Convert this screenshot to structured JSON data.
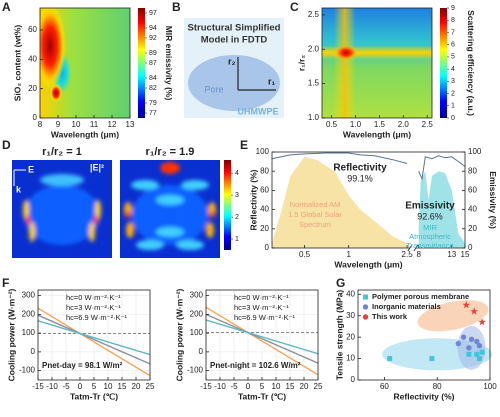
{
  "panel_b": {
    "label": "B",
    "title_1": "Structural Simplified",
    "title_2": "Model in FDTD",
    "pore": "Pore",
    "r2": "r₂",
    "r1": "r₁",
    "matrix": "UHMWPE"
  },
  "chart_data": [
    {
      "type": "heatmap",
      "label": "A",
      "xlabel": "Wavelength (μm)",
      "ylabel": "SiO₂ content (wt%)",
      "xlim": [
        8,
        13
      ],
      "xticks": [
        8,
        9,
        10,
        11,
        12,
        13
      ],
      "ylim": [
        0,
        75
      ],
      "yticks": [
        0,
        20,
        40,
        60
      ],
      "colorbar": {
        "label": "MIR emissivity (%)",
        "lim": [
          76,
          98
        ],
        "ticks": [
          77,
          79,
          82,
          84,
          87,
          89,
          92,
          94,
          97
        ]
      }
    },
    {
      "type": "heatmap",
      "label": "C",
      "xlabel": "Wavelength (μm)",
      "ylabel": "r₁/r₂",
      "xlim": [
        0.3,
        2.6
      ],
      "xticks": [
        0.5,
        {
          "value": 1,
          "label": "1.0"
        },
        1.5,
        {
          "value": 2,
          "label": "2.0"
        },
        2.5
      ],
      "ylim": [
        1,
        2.6
      ],
      "yticks": [
        {
          "value": 1,
          "label": "1.0"
        },
        1.5,
        {
          "value": 2,
          "label": "2.0"
        },
        2.5
      ],
      "colorbar": {
        "label": "Scattering efficiency (a.u.)",
        "lim": [
          0,
          9
        ],
        "ticks": [
          0,
          1,
          2,
          3,
          4,
          5,
          6,
          7,
          8,
          9
        ]
      }
    },
    {
      "type": "field",
      "label": "D",
      "titles": [
        "r₁/r₂ = 1",
        "r₁/r₂ = 1.9"
      ],
      "e_label": "E",
      "k_label": "k",
      "field_label": "|E|²",
      "colorbar": {
        "lim": [
          0.5,
          4.6
        ],
        "ticks": [
          1,
          2,
          3,
          4
        ]
      }
    },
    {
      "type": "spectrum",
      "label": "E",
      "xlabel": "Wavelength (μm)",
      "ylabel": "Reflectivity (%)",
      "y2label": "Emissivity (%)",
      "xlim": [
        0.3,
        15
      ],
      "xbreak": [
        2.5,
        8
      ],
      "xticks": [
        0.5,
        1,
        2.5,
        8,
        13,
        15
      ],
      "ylim": [
        0,
        100
      ],
      "yticks": [
        0,
        20,
        40,
        60,
        80,
        100
      ],
      "y2lim": [
        0,
        100
      ],
      "y2ticks": [
        0,
        20,
        40,
        60,
        80,
        100
      ],
      "series": [
        {
          "color": "#f8e3a6",
          "fill": true,
          "x": [
            0.3,
            0.35,
            0.4,
            0.5,
            0.6,
            0.8,
            1,
            1.2,
            1.5,
            2,
            2.5
          ],
          "values": [
            5,
            40,
            75,
            95,
            92,
            80,
            55,
            40,
            28,
            12,
            5
          ]
        },
        {
          "color": "#9fe3e8",
          "fill": true,
          "axis": "y2",
          "x": [
            8,
            8.3,
            9,
            9.5,
            10,
            11,
            12,
            13,
            14,
            15
          ],
          "values": [
            20,
            70,
            80,
            50,
            75,
            80,
            78,
            60,
            15,
            5
          ]
        },
        {
          "color": "#5d6e9e",
          "x": [
            0.3,
            0.4,
            0.5,
            0.7,
            1,
            1.2,
            1.5,
            2,
            2.5
          ],
          "values": [
            93,
            97,
            98,
            99,
            99,
            97,
            96,
            92,
            88
          ]
        },
        {
          "color": "#5d6e9e",
          "axis": "y2",
          "x": [
            8,
            8.5,
            9,
            10,
            11,
            12,
            13,
            14,
            15
          ],
          "values": [
            80,
            72,
            95,
            93,
            96,
            94,
            95,
            90,
            85
          ]
        }
      ],
      "annotations": [
        "Reflectivity",
        "99.1%",
        "Emissivity",
        "92.6%",
        "Normalized AM",
        "1.5 Global Solar",
        "Spectrum",
        "MIR",
        "Atmospheric",
        "Transmittance"
      ]
    },
    {
      "type": "line",
      "label": "F",
      "xlabel": "Tatm-Tr (℃)",
      "ylabel": "Cooling power (W·m⁻²)",
      "xlim": [
        -15,
        25
      ],
      "xticks": [
        -15,
        -10,
        -5,
        0,
        5,
        10,
        15,
        20,
        25
      ],
      "ylim": [
        -150,
        330
      ],
      "yticks": [
        -100,
        0,
        100,
        200,
        300
      ],
      "reference": 98.1,
      "annotation": "Pnet-day = 98.1 W/m²",
      "series": [
        {
          "name": "hc=0 W·m⁻²·K⁻¹",
          "color": "#f5a55c",
          "x": [
            -15,
            25
          ],
          "values": [
            233.1,
            -126.9
          ]
        },
        {
          "name": "hc=3 W·m⁻²·K⁻¹",
          "color": "#8a8f9a",
          "x": [
            -15,
            25
          ],
          "values": [
            195.6,
            -64.4
          ]
        },
        {
          "name": "hc=6.9 W·m⁻²·K⁻¹",
          "color": "#5bb8c4",
          "x": [
            -15,
            25
          ],
          "values": [
            165.6,
            -14.4
          ]
        }
      ]
    },
    {
      "type": "line",
      "xlabel": "Tatm-Tr (℃)",
      "ylabel": "Cooling power (W·m⁻²)",
      "xlim": [
        -15,
        25
      ],
      "xticks": [
        -15,
        -10,
        -5,
        0,
        5,
        10,
        15,
        20,
        25
      ],
      "ylim": [
        -150,
        330
      ],
      "yticks": [
        -100,
        0,
        100,
        200,
        300
      ],
      "reference": 102.6,
      "annotation": "Pnet-night = 102.6 W/m²",
      "series": [
        {
          "name": "hc=0 W·m⁻²·K⁻¹",
          "color": "#f5a55c",
          "x": [
            -15,
            25
          ],
          "values": [
            237.6,
            -122.4
          ]
        },
        {
          "name": "hc=3 W·m⁻²·K⁻¹",
          "color": "#8a8f9a",
          "x": [
            -15,
            25
          ],
          "values": [
            200.1,
            -59.9
          ]
        },
        {
          "name": "hc=6.9 W·m⁻²·K⁻¹",
          "color": "#5bb8c4",
          "x": [
            -15,
            25
          ],
          "values": [
            170.1,
            -9.9
          ]
        }
      ]
    },
    {
      "type": "scatter",
      "label": "G",
      "xlabel": "Reflectivity (%)",
      "ylabel": "Tensile strength (MPa)",
      "xlim": [
        50,
        100
      ],
      "xticks": [
        60,
        80,
        100
      ],
      "ylim": [
        0,
        42
      ],
      "yticks": [
        0,
        10,
        20,
        30,
        40
      ],
      "series": [
        {
          "name": "Polymer porous membrane",
          "color": "#3ec6d9",
          "marker": "square",
          "x": [
            62,
            78,
            92,
            95,
            96,
            97
          ],
          "values": [
            10,
            10,
            12,
            12,
            10,
            13
          ]
        },
        {
          "name": "Inorganic materials",
          "color": "#6d86d6",
          "marker": "circle",
          "x": [
            88,
            90,
            92,
            93,
            95,
            96
          ],
          "values": [
            17,
            20,
            15,
            19,
            18,
            16
          ]
        },
        {
          "name": "This work",
          "color": "#e8423a",
          "marker": "star",
          "x": [
            91,
            94,
            97
          ],
          "values": [
            35,
            32,
            27
          ]
        }
      ]
    }
  ]
}
